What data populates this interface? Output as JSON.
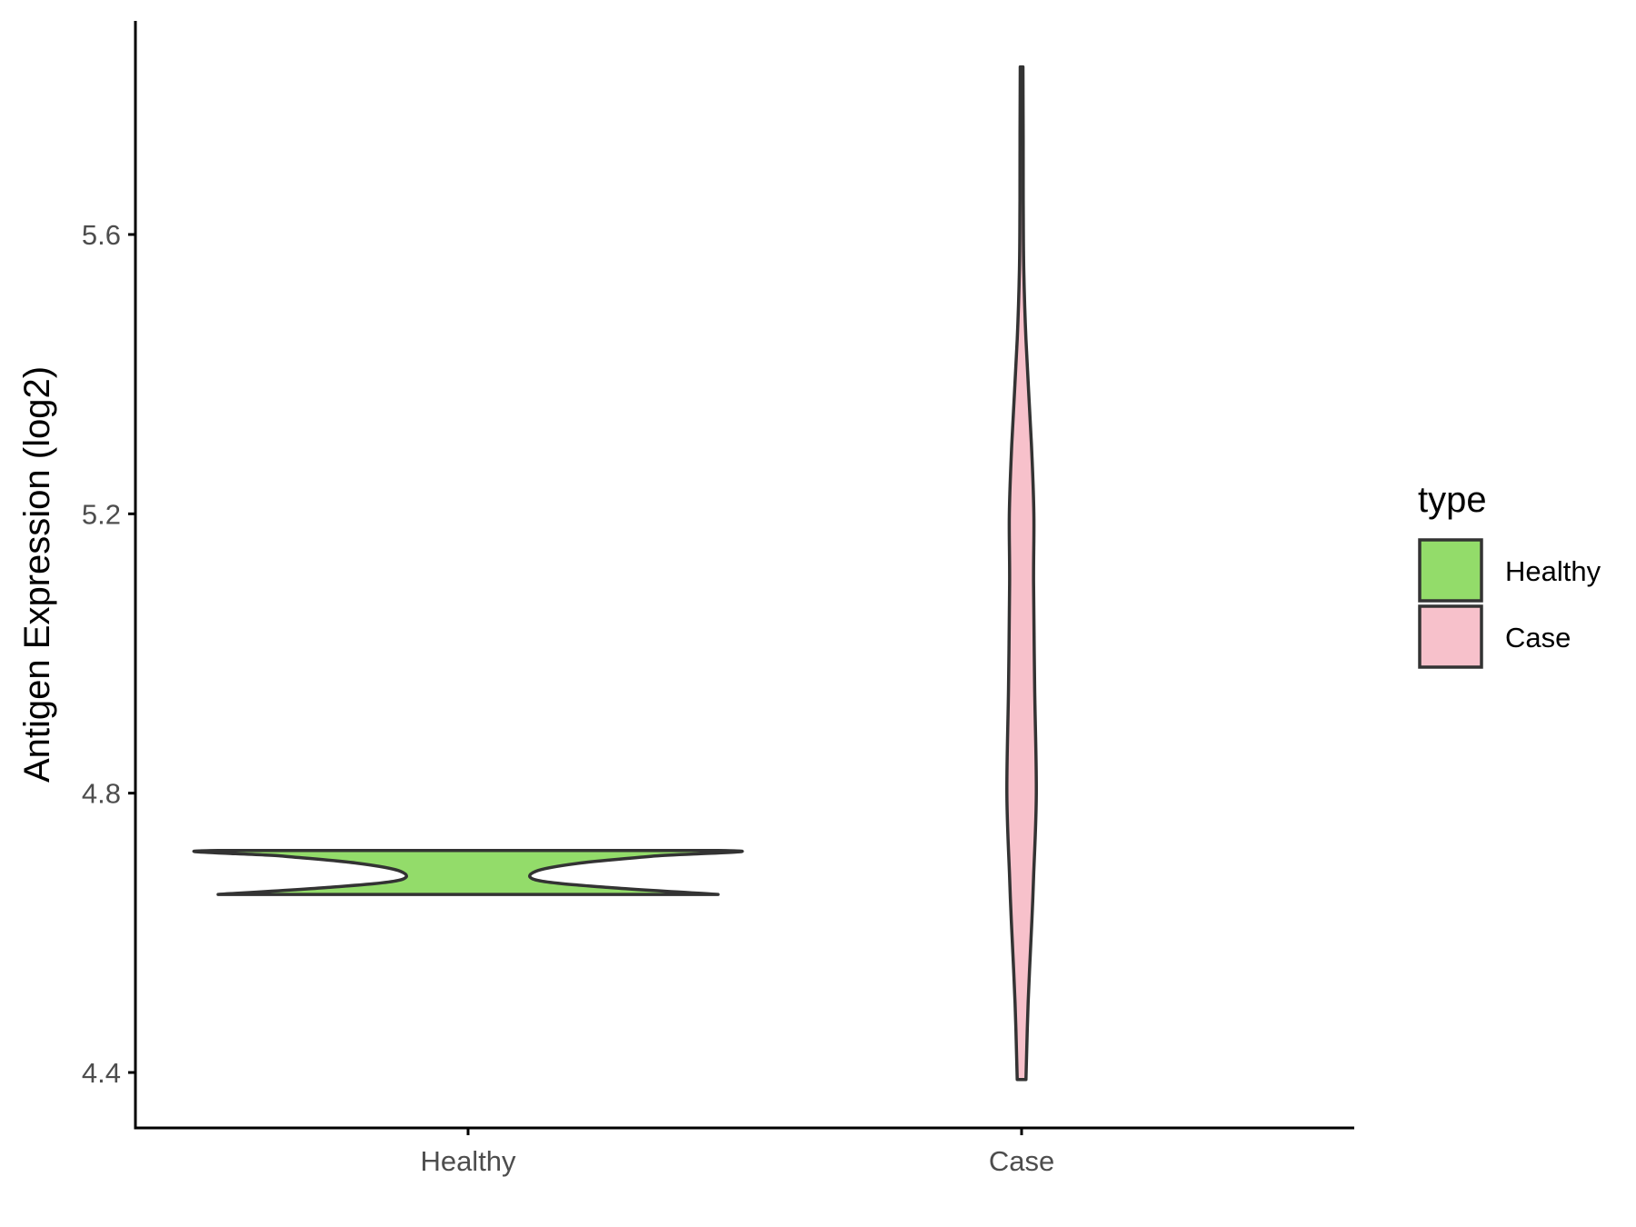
{
  "chart_data": {
    "type": "violin",
    "title": "",
    "xlabel": "",
    "ylabel": "Antigen Expression (log2)",
    "ylim": [
      4.32,
      5.94
    ],
    "yticks": [
      "4.4",
      "4.8",
      "5.2",
      "5.6"
    ],
    "categories": [
      "Healthy",
      "Case"
    ],
    "grid": false,
    "legend": {
      "title": "type",
      "position": "right",
      "items": [
        {
          "label": "Healthy",
          "color": "#93DC6A"
        },
        {
          "label": "Case",
          "color": "#F7C1CB"
        }
      ]
    },
    "series": [
      {
        "name": "Healthy",
        "color": "#93DC6A",
        "min": 4.655,
        "max": 4.718,
        "density": [
          [
            4.655,
            1.0
          ],
          [
            4.665,
            0.56
          ],
          [
            4.675,
            0.28
          ],
          [
            4.688,
            0.27
          ],
          [
            4.7,
            0.45
          ],
          [
            4.71,
            0.75
          ],
          [
            4.718,
            1.0
          ]
        ]
      },
      {
        "name": "Case",
        "color": "#F7C1CB",
        "min": 4.39,
        "max": 5.84,
        "density": [
          [
            4.39,
            0.16
          ],
          [
            4.5,
            0.24
          ],
          [
            4.62,
            0.38
          ],
          [
            4.68,
            0.44
          ],
          [
            4.8,
            0.54
          ],
          [
            4.95,
            0.48
          ],
          [
            5.1,
            0.44
          ],
          [
            5.2,
            0.45
          ],
          [
            5.3,
            0.36
          ],
          [
            5.45,
            0.16
          ],
          [
            5.55,
            0.08
          ],
          [
            5.65,
            0.06
          ],
          [
            5.84,
            0.05
          ]
        ]
      }
    ]
  },
  "colors": {
    "axis": "#000000",
    "outline": "#333333",
    "tick_text": "#4d4d4d"
  }
}
